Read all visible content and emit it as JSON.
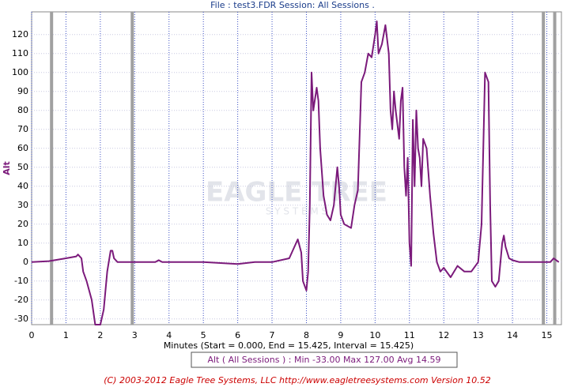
{
  "chart_data": {
    "type": "line",
    "title": "File : test3.FDR    Session: All Sessions .",
    "y_label": "Alt",
    "x_label": "Minutes (Start = 0.000,  End = 15.425,  Interval =  15.425)",
    "legend_text": "Alt ( All Sessions ) : Min -33.00    Max 127.00    Avg 14.59",
    "watermark": "EAGLE TREE",
    "watermark_sub": "S Y S T E M S",
    "footer": "(C) 2003-2012 Eagle Tree Systems, LLC  http://www.eagletreesystems.com  Version 10.52",
    "xlim": [
      0,
      15.425
    ],
    "ylim": [
      -33,
      132
    ],
    "xticks": [
      0,
      1,
      2,
      3,
      4,
      5,
      6,
      7,
      8,
      9,
      10,
      11,
      12,
      13,
      14,
      15
    ],
    "yticks": [
      -30,
      -20,
      -10,
      0,
      10,
      20,
      30,
      40,
      50,
      60,
      70,
      80,
      90,
      100,
      110,
      120
    ],
    "grid": true,
    "session_markers": [
      0.58,
      2.93,
      14.9,
      15.23
    ],
    "series": [
      {
        "name": "Alt",
        "color": "#7b1a7b",
        "x": [
          0,
          0.5,
          1.0,
          1.3,
          1.35,
          1.45,
          1.5,
          1.6,
          1.75,
          1.85,
          2.0,
          2.1,
          2.2,
          2.3,
          2.35,
          2.4,
          2.5,
          3.0,
          3.6,
          3.7,
          3.8,
          5.0,
          6.0,
          6.5,
          7.0,
          7.5,
          7.75,
          7.85,
          7.9,
          8.0,
          8.05,
          8.1,
          8.15,
          8.2,
          8.3,
          8.35,
          8.4,
          8.5,
          8.6,
          8.7,
          8.8,
          8.9,
          8.95,
          9.0,
          9.1,
          9.3,
          9.4,
          9.5,
          9.6,
          9.7,
          9.8,
          9.9,
          10.0,
          10.05,
          10.1,
          10.2,
          10.3,
          10.4,
          10.45,
          10.5,
          10.55,
          10.6,
          10.7,
          10.75,
          10.8,
          10.85,
          10.9,
          10.95,
          11.0,
          11.05,
          11.1,
          11.15,
          11.2,
          11.25,
          11.3,
          11.35,
          11.4,
          11.5,
          11.6,
          11.7,
          11.8,
          11.9,
          12.0,
          12.2,
          12.4,
          12.6,
          12.8,
          13.0,
          13.1,
          13.2,
          13.3,
          13.35,
          13.4,
          13.5,
          13.6,
          13.7,
          13.75,
          13.8,
          13.9,
          14.0,
          14.2,
          15.0,
          15.1,
          15.2,
          15.35
        ],
        "values": [
          0,
          0.5,
          2,
          3,
          4,
          2,
          -5,
          -10,
          -20,
          -33,
          -33,
          -25,
          -5,
          6,
          6,
          2,
          0,
          0,
          0,
          1,
          0,
          0,
          -1,
          0,
          0,
          2,
          12,
          5,
          -10,
          -15,
          -5,
          30,
          100,
          80,
          92,
          85,
          60,
          35,
          25,
          22,
          30,
          50,
          40,
          25,
          20,
          18,
          30,
          38,
          95,
          100,
          110,
          108,
          120,
          127,
          110,
          115,
          125,
          110,
          80,
          70,
          90,
          80,
          65,
          85,
          92,
          50,
          35,
          55,
          10,
          -2,
          75,
          40,
          80,
          60,
          55,
          40,
          65,
          60,
          35,
          15,
          0,
          -5,
          -3,
          -8,
          -2,
          -5,
          -5,
          0,
          20,
          100,
          95,
          30,
          -10,
          -13,
          -10,
          10,
          14,
          8,
          2,
          1,
          0,
          0,
          0,
          2,
          0
        ]
      }
    ]
  }
}
